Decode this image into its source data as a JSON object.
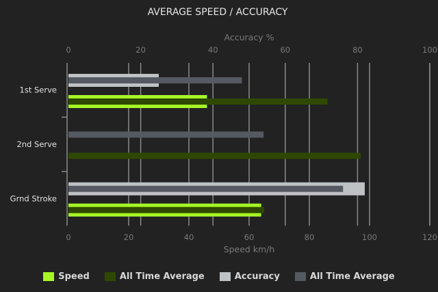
{
  "chart_data": {
    "type": "bar",
    "orientation": "horizontal",
    "title": "AVERAGE SPEED / ACCURACY",
    "categories": [
      "1st Serve",
      "2nd Serve",
      "Grnd Stroke"
    ],
    "top_axis": {
      "label": "Accuracy %",
      "range": [
        0,
        100
      ],
      "ticks": [
        0,
        20,
        40,
        60,
        80,
        100
      ]
    },
    "bottom_axis": {
      "label": "Speed km/h",
      "range": [
        0,
        120
      ],
      "ticks": [
        0,
        20,
        40,
        60,
        80,
        100,
        120
      ]
    },
    "grid": true,
    "legend_position": "bottom",
    "series": [
      {
        "name": "Speed",
        "axis": "bottom",
        "color": "#a6f526",
        "values": [
          46,
          0,
          64
        ]
      },
      {
        "name": "All Time Average",
        "axis": "bottom",
        "color": "#2f4800",
        "values": [
          86,
          97,
          65
        ]
      },
      {
        "name": "Accuracy",
        "axis": "top",
        "color": "#bec2c5",
        "values": [
          25,
          0,
          82
        ]
      },
      {
        "name": "All Time Average",
        "axis": "top",
        "color": "#555a62",
        "values": [
          48,
          54,
          76
        ]
      }
    ]
  }
}
